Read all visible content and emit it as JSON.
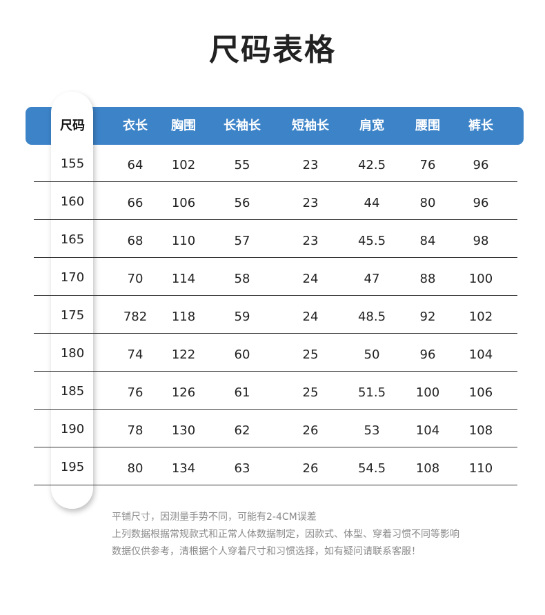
{
  "title": "尺码表格",
  "colors": {
    "header_bg": "#3d83c8"
  },
  "table": {
    "headers": [
      "尺码",
      "衣长",
      "胸围",
      "长袖长",
      "短袖长",
      "肩宽",
      "腰围",
      "裤长"
    ],
    "rows": [
      [
        "155",
        "64",
        "102",
        "55",
        "23",
        "42.5",
        "76",
        "96"
      ],
      [
        "160",
        "66",
        "106",
        "56",
        "23",
        "44",
        "80",
        "96"
      ],
      [
        "165",
        "68",
        "110",
        "57",
        "23",
        "45.5",
        "84",
        "98"
      ],
      [
        "170",
        "70",
        "114",
        "58",
        "24",
        "47",
        "88",
        "100"
      ],
      [
        "175",
        "782",
        "118",
        "59",
        "24",
        "48.5",
        "92",
        "102"
      ],
      [
        "180",
        "74",
        "122",
        "60",
        "25",
        "50",
        "96",
        "104"
      ],
      [
        "185",
        "76",
        "126",
        "61",
        "25",
        "51.5",
        "100",
        "106"
      ],
      [
        "190",
        "78",
        "130",
        "62",
        "26",
        "53",
        "104",
        "108"
      ],
      [
        "195",
        "80",
        "134",
        "63",
        "26",
        "54.5",
        "108",
        "110"
      ]
    ]
  },
  "notes": [
    "平铺尺寸，因测量手势不同，可能有2-4CM误差",
    "上列数据根据常规款式和正常人体数据制定，因款式、体型、穿着习惯不同等影响",
    "数据仅供参考，清根据个人穿着尺寸和习惯选择，如有疑问请联系客服！"
  ]
}
